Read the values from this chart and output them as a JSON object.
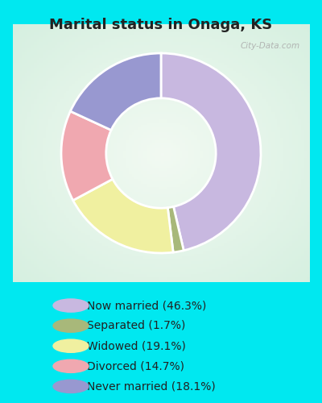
{
  "title": "Marital status in Onaga, KS",
  "title_fontsize": 13,
  "background_outer": "#00e8f0",
  "background_inner_color": "#cceedd",
  "watermark": "City-Data.com",
  "slices": [
    {
      "label": "Now married (46.3%)",
      "value": 46.3,
      "color": "#c8b8e0"
    },
    {
      "label": "Separated (1.7%)",
      "value": 1.7,
      "color": "#a8b87a"
    },
    {
      "label": "Widowed (19.1%)",
      "value": 19.1,
      "color": "#f0f0a0"
    },
    {
      "label": "Divorced (14.7%)",
      "value": 14.7,
      "color": "#f0a8b0"
    },
    {
      "label": "Never married (18.1%)",
      "value": 18.1,
      "color": "#9898d0"
    }
  ],
  "legend_fontsize": 10,
  "donut_width": 0.45,
  "start_angle": 90
}
